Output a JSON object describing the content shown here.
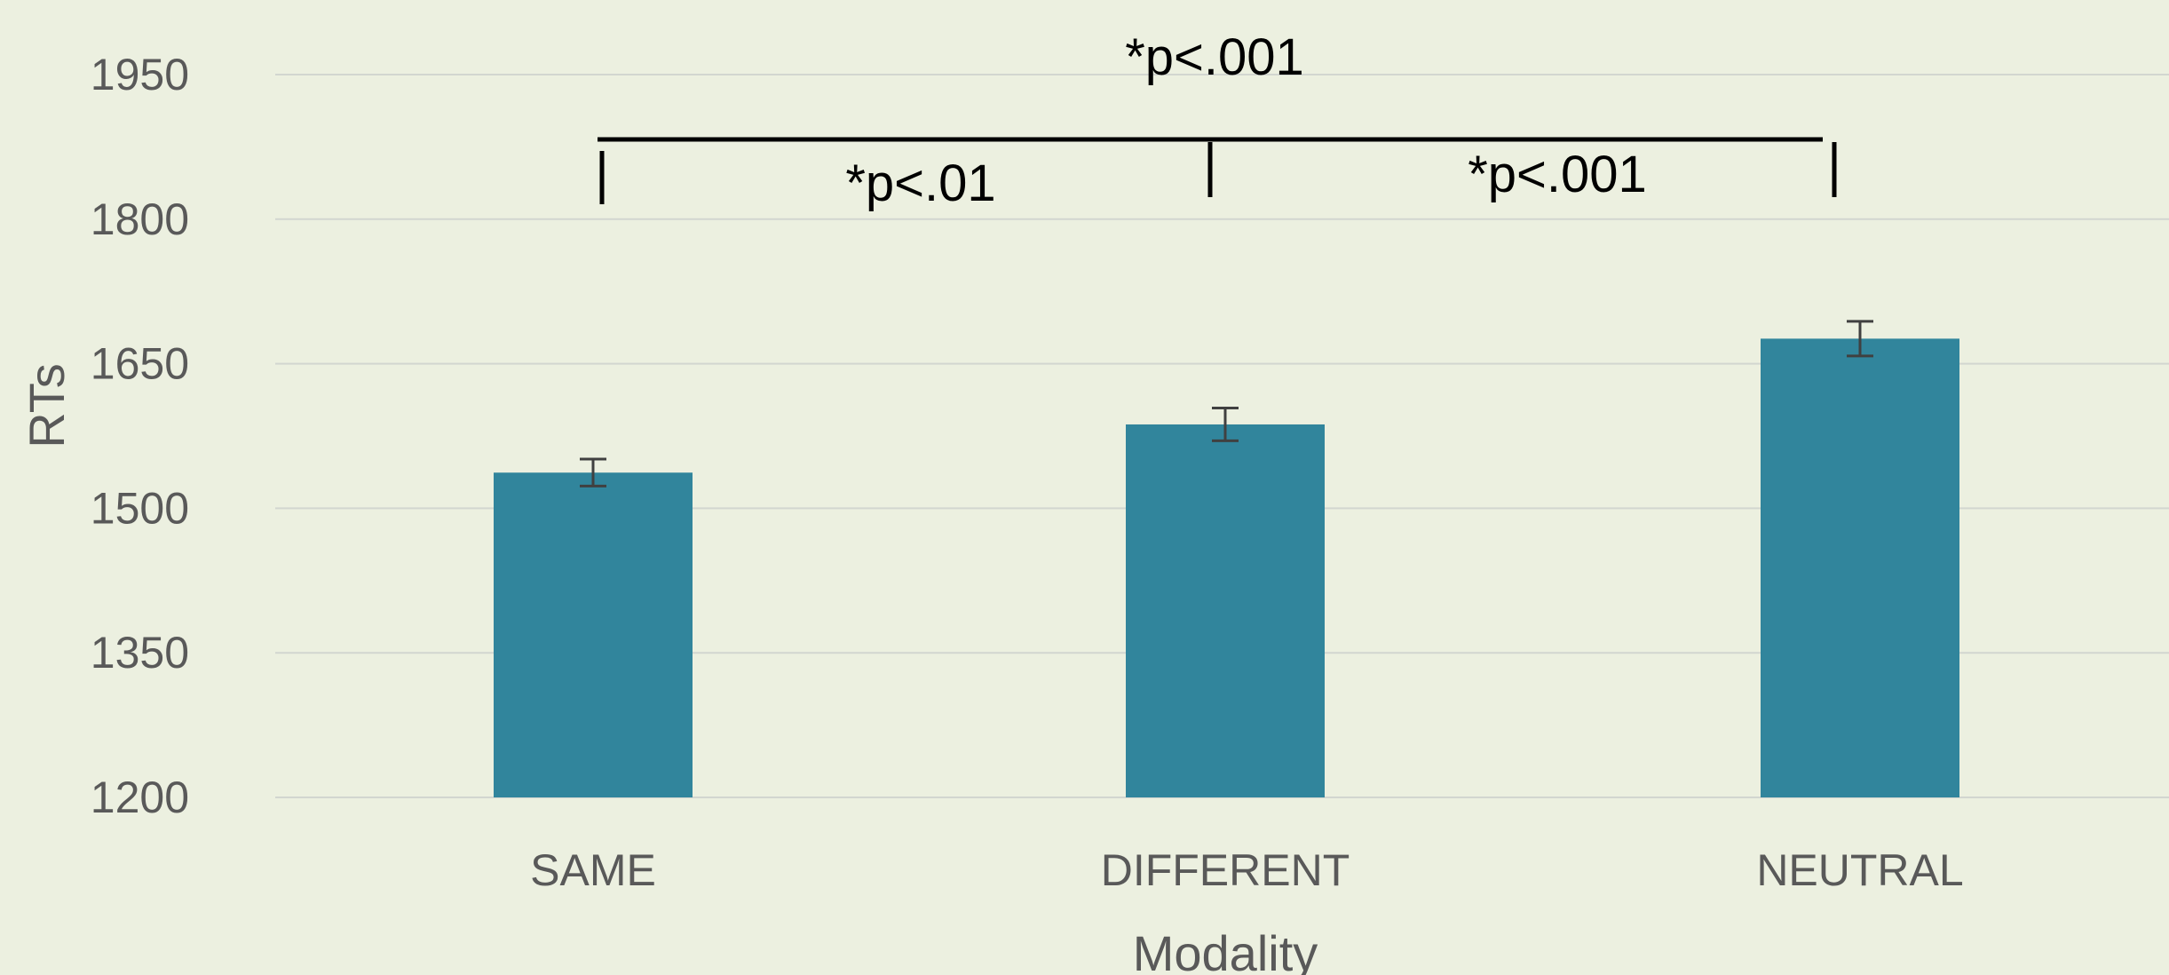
{
  "chart_data": {
    "type": "bar",
    "categories": [
      "SAME",
      "DIFFERENT",
      "NEUTRAL"
    ],
    "values": [
      1537,
      1587,
      1676
    ],
    "error": [
      14,
      17,
      18
    ],
    "xlabel": "Modality",
    "ylabel": "RTs",
    "ylim": [
      1200,
      1950
    ],
    "yticks": [
      1200,
      1350,
      1500,
      1650,
      1800,
      1950
    ],
    "grid": true,
    "bar_color": "#31859c",
    "annotations": [
      {
        "text": "*p<.001",
        "from": "SAME",
        "to": "NEUTRAL"
      },
      {
        "text": "*p<.01",
        "from": "SAME",
        "to": "DIFFERENT"
      },
      {
        "text": "*p<.001",
        "from": "DIFFERENT",
        "to": "NEUTRAL"
      }
    ]
  }
}
